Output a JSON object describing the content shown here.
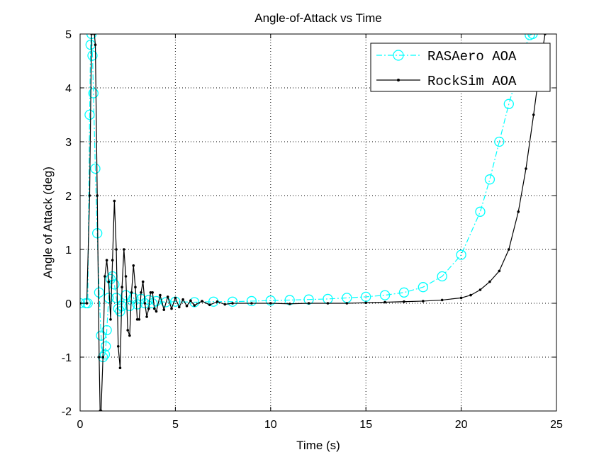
{
  "chart_data": {
    "type": "line",
    "title": "Angle-of-Attack vs Time",
    "xlabel": "Time (s)",
    "ylabel": "Angle of Attack (deg)",
    "xlim": [
      0,
      25
    ],
    "ylim": [
      -2,
      5
    ],
    "xticks": [
      0,
      5,
      10,
      15,
      20,
      25
    ],
    "yticks": [
      -2,
      -1,
      0,
      1,
      2,
      3,
      4,
      5
    ],
    "grid": true,
    "legend_position": "top-right",
    "series": [
      {
        "name": "RASAero AOA",
        "color": "#00ffff",
        "style": "dash-dot with open circle markers",
        "x": [
          0.0,
          0.3,
          0.4,
          0.5,
          0.55,
          0.6,
          0.65,
          0.7,
          0.8,
          0.9,
          1.0,
          1.1,
          1.2,
          1.3,
          1.35,
          1.4,
          1.5,
          1.6,
          1.7,
          1.8,
          1.9,
          2.0,
          2.1,
          2.2,
          2.4,
          2.6,
          2.8,
          3.0,
          3.2,
          3.4,
          3.6,
          3.8,
          4.0,
          4.5,
          5,
          6,
          7,
          8,
          9,
          10,
          11,
          12,
          13,
          14,
          15,
          16,
          17,
          18,
          19,
          20,
          21,
          21.5,
          22,
          22.5,
          23,
          23.3,
          23.6,
          23.75
        ],
        "y": [
          0.0,
          0.0,
          0.0,
          3.5,
          4.8,
          5.0,
          4.6,
          3.9,
          2.5,
          1.3,
          0.2,
          -0.6,
          -1.0,
          -0.95,
          -0.8,
          -0.5,
          0.1,
          0.45,
          0.5,
          0.35,
          0.1,
          -0.1,
          -0.15,
          -0.05,
          0.15,
          -0.05,
          0.1,
          -0.02,
          0.08,
          0.0,
          0.06,
          0.0,
          0.04,
          0.02,
          0.03,
          0.02,
          0.03,
          0.03,
          0.04,
          0.05,
          0.06,
          0.07,
          0.08,
          0.1,
          0.12,
          0.15,
          0.2,
          0.3,
          0.5,
          0.9,
          1.7,
          2.3,
          3.0,
          3.7,
          4.3,
          4.7,
          4.98,
          5.0
        ]
      },
      {
        "name": "RockSim AOA",
        "color": "#000000",
        "style": "solid with dot markers",
        "x": [
          0.0,
          0.35,
          0.5,
          0.6,
          0.75,
          0.8,
          0.9,
          1.0,
          1.05,
          1.1,
          1.2,
          1.3,
          1.4,
          1.5,
          1.6,
          1.7,
          1.8,
          1.9,
          2.0,
          2.1,
          2.2,
          2.3,
          2.4,
          2.5,
          2.6,
          2.7,
          2.8,
          2.9,
          3.0,
          3.1,
          3.2,
          3.3,
          3.4,
          3.5,
          3.6,
          3.7,
          3.8,
          3.9,
          4.0,
          4.2,
          4.4,
          4.6,
          4.8,
          5.0,
          5.2,
          5.4,
          5.6,
          5.8,
          6.0,
          6.4,
          6.8,
          7.2,
          7.6,
          8.0,
          9,
          10,
          11,
          12,
          13,
          14,
          15,
          16,
          17,
          18,
          19,
          20,
          20.5,
          21,
          21.5,
          22,
          22.5,
          23,
          23.4,
          23.8,
          24.1,
          24.4
        ],
        "y": [
          0.0,
          0.0,
          2.0,
          5.0,
          5.0,
          4.8,
          2.0,
          -1.0,
          -2.0,
          -2.0,
          -1.0,
          0.5,
          0.8,
          0.4,
          -0.3,
          0.8,
          1.9,
          1.0,
          -0.8,
          -1.2,
          0.3,
          1.0,
          0.5,
          -0.5,
          -0.6,
          0.2,
          0.7,
          0.3,
          -0.3,
          -0.3,
          0.2,
          0.4,
          0.0,
          -0.25,
          -0.1,
          0.2,
          0.2,
          -0.1,
          -0.15,
          0.15,
          -0.12,
          0.12,
          -0.1,
          0.1,
          -0.07,
          0.07,
          -0.05,
          0.05,
          -0.04,
          0.04,
          -0.03,
          0.03,
          -0.02,
          0.0,
          0.0,
          0.0,
          -0.01,
          0.0,
          0.0,
          0.0,
          0.01,
          0.02,
          0.03,
          0.04,
          0.06,
          0.1,
          0.15,
          0.25,
          0.4,
          0.6,
          1.0,
          1.7,
          2.5,
          3.5,
          4.3,
          5.0
        ]
      }
    ]
  }
}
